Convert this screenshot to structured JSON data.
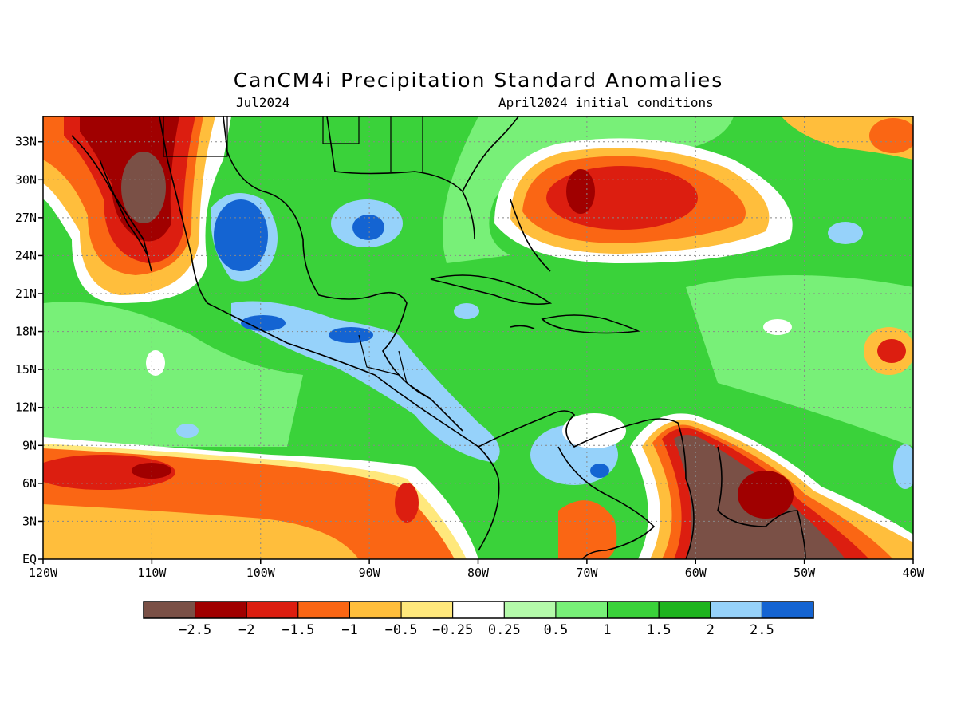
{
  "header": {
    "title": "CanCM4i Precipitation Standard Anomalies",
    "valid_month": "Jul2024",
    "initial_conditions": "April2024 initial conditions"
  },
  "map": {
    "lon_range": [
      -120,
      -40
    ],
    "lat_range": [
      0,
      35
    ],
    "x_ticks": [
      "120W",
      "110W",
      "100W",
      "90W",
      "80W",
      "70W",
      "60W",
      "50W",
      "40W"
    ],
    "y_ticks": [
      "EQ",
      "3N",
      "6N",
      "9N",
      "12N",
      "15N",
      "18N",
      "21N",
      "24N",
      "27N",
      "30N",
      "33N"
    ],
    "gridlines": true,
    "background_color": "#3ad23a",
    "anomaly_regions": [
      {
        "name": "Mexico dry core",
        "level": -2.75,
        "lon": -110,
        "lat": 29,
        "rx": 3,
        "ry": 5
      },
      {
        "name": "Northern Mexico dry",
        "level": -2.0,
        "lon": -111,
        "lat": 30,
        "rx": 7,
        "ry": 7
      },
      {
        "name": "Central Atlantic dry",
        "level": -1.75,
        "lon": -72,
        "lat": 28,
        "rx": 10,
        "ry": 4
      },
      {
        "name": "Eastern Pacific dry",
        "level": -1.25,
        "lon": -100,
        "lat": 4,
        "rx": 20,
        "ry": 4
      },
      {
        "name": "Guianas dry core",
        "level": -2.75,
        "lon": -56,
        "lat": 5,
        "rx": 7,
        "ry": 5
      },
      {
        "name": "Gulf of Mexico wet",
        "level": 2.75,
        "lon": -102,
        "lat": 25,
        "rx": 3,
        "ry": 4
      },
      {
        "name": "Central America wet",
        "level": 2.25,
        "lon": -90,
        "lat": 16,
        "rx": 10,
        "ry": 3
      }
    ]
  },
  "colorbar": {
    "colors": [
      "#7a5046",
      "#a00000",
      "#dc1e10",
      "#fa6614",
      "#ffbe3c",
      "#ffe87c",
      "#ffffff",
      "#b4faaa",
      "#78f078",
      "#3ad23a",
      "#1eb41e",
      "#96d2fa",
      "#1464d2"
    ],
    "labels": [
      "−2.5",
      "−2",
      "−1.5",
      "−1",
      "−0.5",
      "−0.25",
      "0.25",
      "0.5",
      "1",
      "1.5",
      "2",
      "2.5"
    ]
  }
}
